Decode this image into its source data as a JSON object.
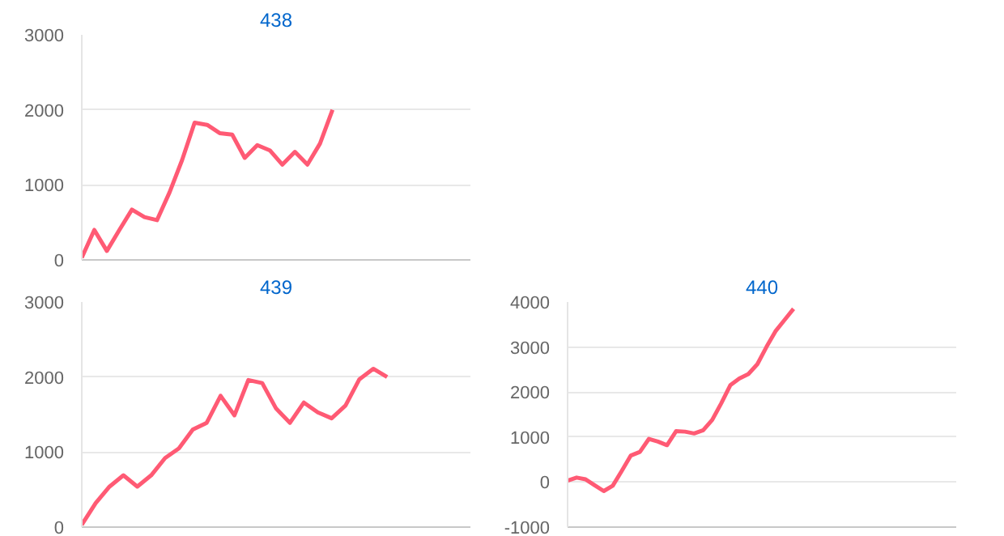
{
  "chart_data": [
    {
      "type": "line",
      "title": "438",
      "categories": [
        null,
        null,
        null,
        null,
        null,
        null,
        null,
        null,
        null,
        null,
        null,
        null,
        null,
        null,
        null,
        null,
        null,
        null,
        null,
        null,
        null,
        null,
        null,
        null,
        null,
        null,
        null,
        null,
        null,
        null,
        null,
        null
      ],
      "series": [
        {
          "color": "#ff5a74",
          "values": [
            30,
            400,
            120,
            400,
            670,
            570,
            530,
            900,
            1330,
            1830,
            1800,
            1690,
            1670,
            1360,
            1530,
            1460,
            1270,
            1440,
            1270,
            1550,
            2000,
            null,
            null,
            null,
            null,
            null,
            null,
            null,
            null,
            null,
            null,
            null
          ]
        }
      ],
      "ylim": [
        0,
        3000
      ],
      "yticks": [
        0,
        1000,
        2000,
        3000
      ],
      "grid": "y",
      "tick_labels": "y",
      "marker": "none"
    },
    {
      "type": "line",
      "title": "439",
      "categories": [
        null,
        null,
        null,
        null,
        null,
        null,
        null,
        null,
        null,
        null,
        null,
        null,
        null,
        null,
        null,
        null,
        null,
        null,
        null,
        null,
        null,
        null,
        null,
        null,
        null,
        null,
        null,
        null,
        null
      ],
      "series": [
        {
          "color": "#ff5a74",
          "values": [
            30,
            320,
            540,
            690,
            540,
            690,
            920,
            1050,
            1300,
            1390,
            1750,
            1490,
            1960,
            1920,
            1580,
            1390,
            1660,
            1530,
            1450,
            1620,
            1970,
            2110,
            2000,
            null,
            null,
            null,
            null,
            null,
            null
          ]
        }
      ],
      "ylim": [
        0,
        3000
      ],
      "yticks": [
        0,
        1000,
        2000,
        3000
      ],
      "grid": "y",
      "tick_labels": "y",
      "marker": "none"
    },
    {
      "type": "line",
      "title": "440",
      "categories": [
        null,
        null,
        null,
        null,
        null,
        null,
        null,
        null,
        null,
        null,
        null,
        null,
        null,
        null,
        null,
        null,
        null,
        null,
        null,
        null,
        null,
        null,
        null,
        null,
        null,
        null,
        null,
        null,
        null,
        null,
        null,
        null,
        null,
        null,
        null,
        null,
        null,
        null,
        null,
        null,
        null,
        null,
        null,
        null
      ],
      "series": [
        {
          "color": "#ff5a74",
          "values": [
            30,
            100,
            60,
            -70,
            -200,
            -80,
            250,
            590,
            670,
            960,
            900,
            820,
            1130,
            1120,
            1080,
            1150,
            1380,
            1750,
            2150,
            2300,
            2400,
            2620,
            3000,
            3350,
            3600,
            3850,
            null,
            null,
            null,
            null,
            null,
            null,
            null,
            null,
            null,
            null,
            null,
            null,
            null,
            null,
            null,
            null,
            null,
            null
          ]
        }
      ],
      "ylim": [
        -1000,
        4000
      ],
      "yticks": [
        -1000,
        0,
        1000,
        2000,
        3000,
        4000
      ],
      "grid": "y",
      "tick_labels": "y",
      "marker": "none"
    }
  ]
}
